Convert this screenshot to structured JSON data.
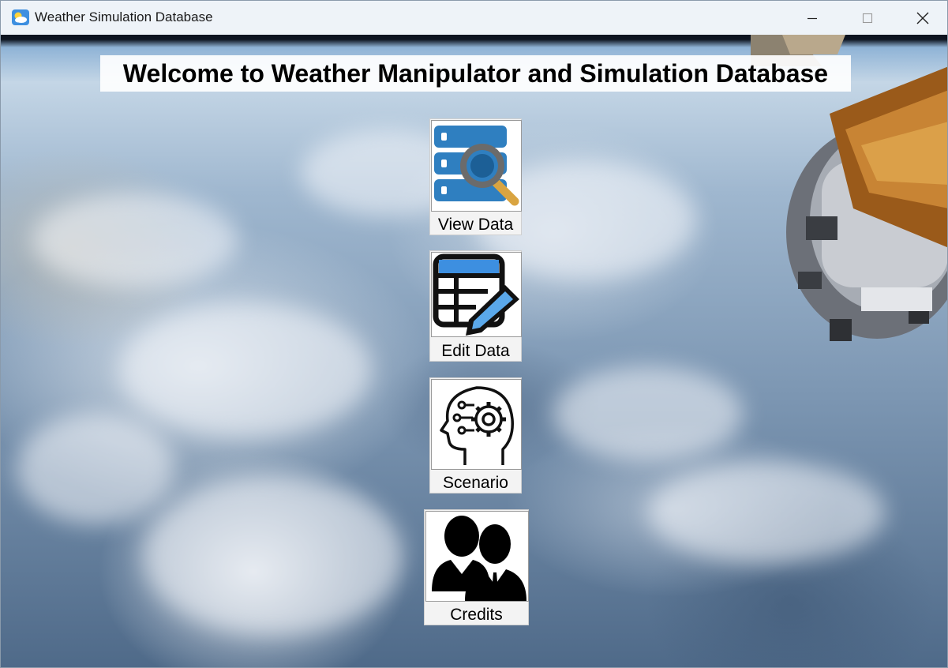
{
  "window": {
    "title": "Weather Simulation Database",
    "app_icon": "weather-cloud-sun-icon",
    "controls": [
      "minimize-icon",
      "maximize-icon",
      "close-icon"
    ]
  },
  "main": {
    "welcome": "Welcome to Weather Manipulator and Simulation Database",
    "buttons": [
      {
        "label": "View Data",
        "icon": "database-search-icon"
      },
      {
        "label": "Edit Data",
        "icon": "table-edit-icon"
      },
      {
        "label": "Scenario",
        "icon": "head-gears-icon"
      },
      {
        "label": "Credits",
        "icon": "people-icon"
      }
    ]
  },
  "colors": {
    "titlebar": "#eef3f8",
    "accent_blue": "#2f7fc0",
    "magnifier_handle": "#d9a441"
  }
}
